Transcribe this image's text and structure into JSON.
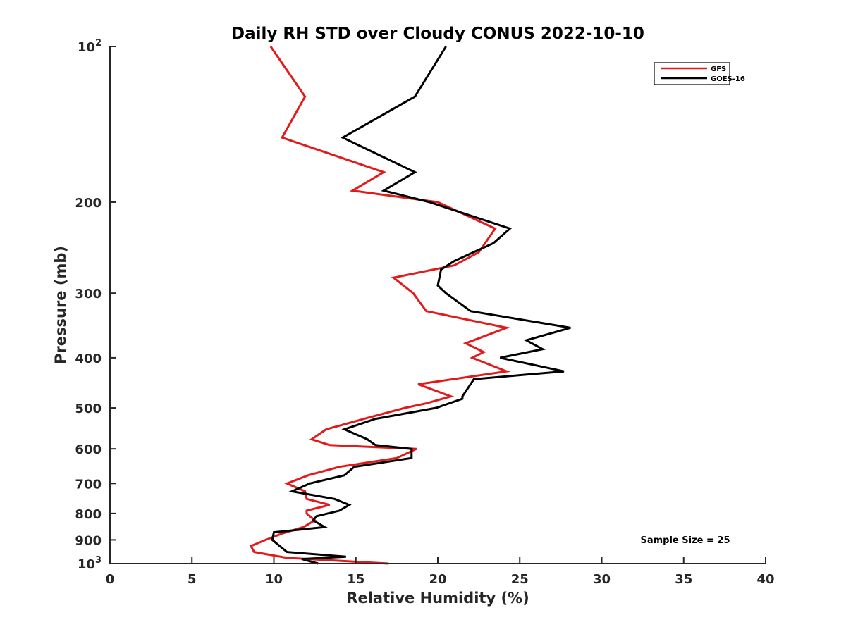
{
  "chart_data": {
    "type": "line",
    "title": "Daily RH STD over Cloudy CONUS 2022-10-10",
    "xlabel": "Relative Humidity (%)",
    "ylabel": "Pressure (mb)",
    "xlim": [
      0,
      40
    ],
    "ylim": [
      100,
      1000
    ],
    "y_scale": "log",
    "y_reversed": true,
    "grid": false,
    "legend_position": "top-right",
    "annotation": "Sample Size = 25",
    "x_ticks": [
      {
        "value": 0,
        "label": "0"
      },
      {
        "value": 5,
        "label": "5"
      },
      {
        "value": 10,
        "label": "10"
      },
      {
        "value": 15,
        "label": "15"
      },
      {
        "value": 20,
        "label": "20"
      },
      {
        "value": 25,
        "label": "25"
      },
      {
        "value": 30,
        "label": "30"
      },
      {
        "value": 35,
        "label": "35"
      },
      {
        "value": 40,
        "label": "40"
      }
    ],
    "y_ticks": [
      {
        "value": 100,
        "label": "10",
        "sup": "2"
      },
      {
        "value": 200,
        "label": "200",
        "sup": ""
      },
      {
        "value": 300,
        "label": "300",
        "sup": ""
      },
      {
        "value": 400,
        "label": "400",
        "sup": ""
      },
      {
        "value": 500,
        "label": "500",
        "sup": ""
      },
      {
        "value": 600,
        "label": "600",
        "sup": ""
      },
      {
        "value": 700,
        "label": "700",
        "sup": ""
      },
      {
        "value": 800,
        "label": "800",
        "sup": ""
      },
      {
        "value": 900,
        "label": "900",
        "sup": ""
      },
      {
        "value": 1000,
        "label": "10",
        "sup": "3"
      }
    ],
    "series": [
      {
        "name": "GFS",
        "color": "#e31a1c",
        "points": [
          {
            "x": 9.8,
            "y": 100
          },
          {
            "x": 11.9,
            "y": 125
          },
          {
            "x": 10.5,
            "y": 150
          },
          {
            "x": 16.7,
            "y": 175
          },
          {
            "x": 14.8,
            "y": 190
          },
          {
            "x": 20.0,
            "y": 200
          },
          {
            "x": 23.5,
            "y": 225
          },
          {
            "x": 22.5,
            "y": 250
          },
          {
            "x": 21.0,
            "y": 265
          },
          {
            "x": 17.3,
            "y": 280
          },
          {
            "x": 18.5,
            "y": 300
          },
          {
            "x": 19.3,
            "y": 325
          },
          {
            "x": 24.2,
            "y": 350
          },
          {
            "x": 21.7,
            "y": 375
          },
          {
            "x": 22.8,
            "y": 390
          },
          {
            "x": 22.1,
            "y": 400
          },
          {
            "x": 24.2,
            "y": 425
          },
          {
            "x": 18.8,
            "y": 450
          },
          {
            "x": 20.8,
            "y": 475
          },
          {
            "x": 19.3,
            "y": 490
          },
          {
            "x": 18.0,
            "y": 500
          },
          {
            "x": 15.5,
            "y": 525
          },
          {
            "x": 13.2,
            "y": 550
          },
          {
            "x": 12.3,
            "y": 575
          },
          {
            "x": 13.4,
            "y": 590
          },
          {
            "x": 18.7,
            "y": 600
          },
          {
            "x": 17.5,
            "y": 625
          },
          {
            "x": 14.0,
            "y": 650
          },
          {
            "x": 12.1,
            "y": 675
          },
          {
            "x": 10.8,
            "y": 700
          },
          {
            "x": 11.9,
            "y": 725
          },
          {
            "x": 12.0,
            "y": 750
          },
          {
            "x": 13.4,
            "y": 770
          },
          {
            "x": 12.0,
            "y": 790
          },
          {
            "x": 12.0,
            "y": 800
          },
          {
            "x": 12.5,
            "y": 825
          },
          {
            "x": 11.8,
            "y": 850
          },
          {
            "x": 10.5,
            "y": 875
          },
          {
            "x": 9.5,
            "y": 900
          },
          {
            "x": 8.6,
            "y": 925
          },
          {
            "x": 8.8,
            "y": 950
          },
          {
            "x": 10.8,
            "y": 975
          },
          {
            "x": 17.0,
            "y": 1000
          }
        ]
      },
      {
        "name": "GOES-16",
        "color": "#000000",
        "points": [
          {
            "x": 20.5,
            "y": 100
          },
          {
            "x": 18.6,
            "y": 125
          },
          {
            "x": 14.2,
            "y": 150
          },
          {
            "x": 18.6,
            "y": 175
          },
          {
            "x": 16.7,
            "y": 190
          },
          {
            "x": 19.5,
            "y": 200
          },
          {
            "x": 24.4,
            "y": 225
          },
          {
            "x": 23.4,
            "y": 240
          },
          {
            "x": 21.0,
            "y": 260
          },
          {
            "x": 20.2,
            "y": 270
          },
          {
            "x": 20.0,
            "y": 290
          },
          {
            "x": 20.5,
            "y": 300
          },
          {
            "x": 22.0,
            "y": 325
          },
          {
            "x": 28.1,
            "y": 350
          },
          {
            "x": 25.4,
            "y": 370
          },
          {
            "x": 26.4,
            "y": 385
          },
          {
            "x": 23.8,
            "y": 400
          },
          {
            "x": 27.7,
            "y": 425
          },
          {
            "x": 22.2,
            "y": 440
          },
          {
            "x": 21.5,
            "y": 475
          },
          {
            "x": 21.5,
            "y": 480
          },
          {
            "x": 19.9,
            "y": 500
          },
          {
            "x": 16.2,
            "y": 525
          },
          {
            "x": 14.3,
            "y": 550
          },
          {
            "x": 15.7,
            "y": 575
          },
          {
            "x": 16.2,
            "y": 590
          },
          {
            "x": 18.4,
            "y": 600
          },
          {
            "x": 18.4,
            "y": 625
          },
          {
            "x": 14.9,
            "y": 650
          },
          {
            "x": 14.3,
            "y": 675
          },
          {
            "x": 12.2,
            "y": 700
          },
          {
            "x": 11.1,
            "y": 725
          },
          {
            "x": 13.7,
            "y": 750
          },
          {
            "x": 14.6,
            "y": 770
          },
          {
            "x": 14.0,
            "y": 790
          },
          {
            "x": 12.6,
            "y": 810
          },
          {
            "x": 12.4,
            "y": 825
          },
          {
            "x": 13.1,
            "y": 850
          },
          {
            "x": 10.0,
            "y": 870
          },
          {
            "x": 9.9,
            "y": 900
          },
          {
            "x": 10.8,
            "y": 950
          },
          {
            "x": 14.4,
            "y": 970
          },
          {
            "x": 11.7,
            "y": 980
          },
          {
            "x": 12.7,
            "y": 1000
          }
        ]
      }
    ]
  }
}
